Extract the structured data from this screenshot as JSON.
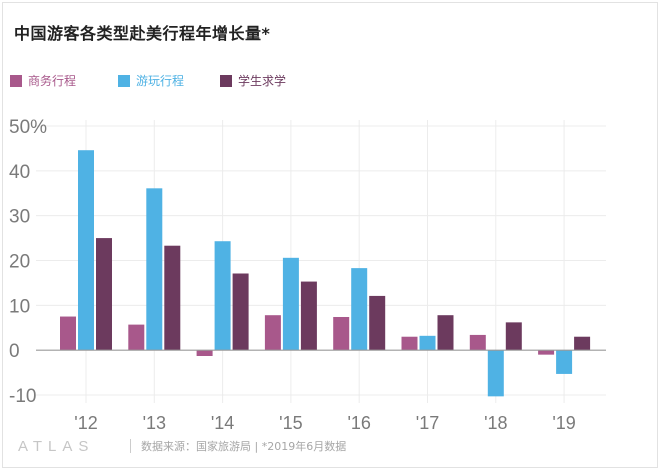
{
  "title": "中国游客各类型赴美行程年增长量*",
  "footer": {
    "logo": "ATLAS",
    "source": "数据来源：国家旅游局 | *2019年6月数据"
  },
  "chart_data": {
    "type": "bar",
    "title": "中国游客各类型赴美行程年增长量*",
    "categories": [
      "'12",
      "'13",
      "'14",
      "'15",
      "'16",
      "'17",
      "'18",
      "'19"
    ],
    "series": [
      {
        "name": "商务行程",
        "color": "#a8588b",
        "values": [
          7.5,
          5.7,
          -1.3,
          7.8,
          7.4,
          3.0,
          3.4,
          -1.0
        ]
      },
      {
        "name": "游玩行程",
        "color": "#4fb2e4",
        "values": [
          44.6,
          36.1,
          24.3,
          20.6,
          18.3,
          3.2,
          -10.3,
          -5.3
        ]
      },
      {
        "name": "学生求学",
        "color": "#6c3a5e",
        "values": [
          25.0,
          23.3,
          17.1,
          15.3,
          12.1,
          7.8,
          6.2,
          3.0
        ]
      }
    ],
    "ylim": [
      -10,
      50
    ],
    "yticks": [
      "-10",
      "0",
      "10",
      "20",
      "30",
      "40",
      "50%"
    ],
    "ytick_values": [
      -10,
      0,
      10,
      20,
      30,
      40,
      50
    ],
    "xlabel": "",
    "ylabel": "",
    "legend": "top-left",
    "grid": true
  }
}
